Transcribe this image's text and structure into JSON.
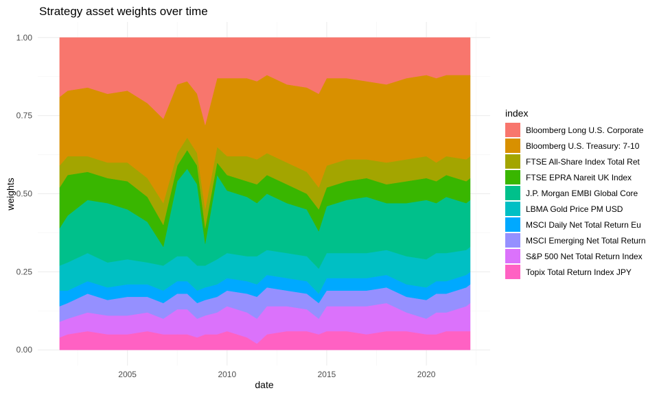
{
  "chart_data": {
    "type": "area",
    "stacked": true,
    "title": "Strategy asset weights over time",
    "xlabel": "date",
    "ylabel": "weights",
    "xlim": [
      2000.5,
      2023.2
    ],
    "ylim": [
      -0.05,
      1.05
    ],
    "x_ticks": [
      2005,
      2010,
      2015,
      2020
    ],
    "x_tick_labels": [
      "2005",
      "2010",
      "2015",
      "2020"
    ],
    "y_ticks": [
      0,
      0.25,
      0.5,
      0.75,
      1.0
    ],
    "y_tick_labels": [
      "0.00",
      "0.25",
      "0.50",
      "0.75",
      "1.00"
    ],
    "grid": true,
    "legend": {
      "title": "index",
      "position": "right"
    },
    "x": [
      2001.6,
      2002.0,
      2003.0,
      2004.0,
      2005.0,
      2006.0,
      2006.8,
      2007.5,
      2008.0,
      2008.5,
      2008.9,
      2009.5,
      2010.0,
      2011.0,
      2011.5,
      2012.0,
      2013.0,
      2014.0,
      2014.6,
      2015.0,
      2016.0,
      2017.0,
      2018.0,
      2019.0,
      2020.0,
      2020.5,
      2021.0,
      2022.0,
      2022.2
    ],
    "series": [
      {
        "name": "Topix Total Return Index JPY",
        "color": "#FF61C3",
        "values": [
          0.04,
          0.05,
          0.06,
          0.05,
          0.05,
          0.06,
          0.05,
          0.05,
          0.05,
          0.04,
          0.05,
          0.05,
          0.06,
          0.04,
          0.02,
          0.05,
          0.06,
          0.06,
          0.05,
          0.06,
          0.06,
          0.05,
          0.06,
          0.06,
          0.05,
          0.05,
          0.06,
          0.06,
          0.06
        ]
      },
      {
        "name": "S&P 500 Net Total Return Index",
        "color": "#DB72FB",
        "values": [
          0.05,
          0.05,
          0.06,
          0.06,
          0.06,
          0.06,
          0.05,
          0.08,
          0.08,
          0.06,
          0.06,
          0.07,
          0.08,
          0.08,
          0.08,
          0.09,
          0.08,
          0.07,
          0.05,
          0.08,
          0.08,
          0.09,
          0.09,
          0.06,
          0.05,
          0.07,
          0.06,
          0.08,
          0.09
        ]
      },
      {
        "name": "MSCI Emerging Net Total Return",
        "color": "#9590FF",
        "values": [
          0.05,
          0.05,
          0.06,
          0.05,
          0.06,
          0.05,
          0.05,
          0.05,
          0.05,
          0.05,
          0.05,
          0.05,
          0.05,
          0.06,
          0.07,
          0.06,
          0.05,
          0.05,
          0.05,
          0.05,
          0.05,
          0.05,
          0.05,
          0.05,
          0.06,
          0.06,
          0.06,
          0.06,
          0.06
        ]
      },
      {
        "name": "MSCI Daily Net Total Return Eu",
        "color": "#00A9FF",
        "values": [
          0.05,
          0.04,
          0.04,
          0.04,
          0.04,
          0.04,
          0.04,
          0.04,
          0.04,
          0.04,
          0.04,
          0.04,
          0.04,
          0.04,
          0.04,
          0.04,
          0.04,
          0.04,
          0.03,
          0.04,
          0.04,
          0.04,
          0.04,
          0.04,
          0.04,
          0.04,
          0.04,
          0.04,
          0.04
        ]
      },
      {
        "name": "LBMA Gold Price PM USD",
        "color": "#00BFC4",
        "values": [
          0.08,
          0.09,
          0.09,
          0.08,
          0.08,
          0.07,
          0.08,
          0.08,
          0.08,
          0.08,
          0.07,
          0.08,
          0.08,
          0.08,
          0.09,
          0.08,
          0.08,
          0.08,
          0.08,
          0.08,
          0.08,
          0.08,
          0.08,
          0.09,
          0.09,
          0.09,
          0.09,
          0.08,
          0.08
        ]
      },
      {
        "name": "J.P. Morgan EMBI Global Core",
        "color": "#00C08B",
        "values": [
          0.12,
          0.15,
          0.17,
          0.19,
          0.16,
          0.13,
          0.06,
          0.24,
          0.28,
          0.26,
          0.07,
          0.27,
          0.2,
          0.19,
          0.17,
          0.18,
          0.16,
          0.15,
          0.12,
          0.15,
          0.17,
          0.18,
          0.15,
          0.17,
          0.19,
          0.16,
          0.18,
          0.15,
          0.15
        ]
      },
      {
        "name": "FTSE EPRA Nareit UK Index",
        "color": "#39B600",
        "values": [
          0.13,
          0.13,
          0.09,
          0.08,
          0.09,
          0.08,
          0.07,
          0.05,
          0.06,
          0.06,
          0.05,
          0.04,
          0.05,
          0.05,
          0.06,
          0.06,
          0.06,
          0.05,
          0.07,
          0.06,
          0.06,
          0.06,
          0.06,
          0.07,
          0.07,
          0.07,
          0.07,
          0.07,
          0.07
        ]
      },
      {
        "name": "FTSE All-Share Index Total Ret",
        "color": "#A3A500",
        "values": [
          0.07,
          0.06,
          0.05,
          0.05,
          0.06,
          0.06,
          0.07,
          0.04,
          0.04,
          0.04,
          0.06,
          0.05,
          0.06,
          0.08,
          0.08,
          0.07,
          0.07,
          0.07,
          0.07,
          0.07,
          0.07,
          0.06,
          0.07,
          0.07,
          0.07,
          0.06,
          0.06,
          0.07,
          0.07
        ]
      },
      {
        "name": "Bloomberg U.S. Treasury: 7-10",
        "color": "#D89000",
        "values": [
          0.22,
          0.21,
          0.22,
          0.22,
          0.23,
          0.24,
          0.27,
          0.22,
          0.18,
          0.19,
          0.27,
          0.22,
          0.25,
          0.25,
          0.25,
          0.25,
          0.25,
          0.27,
          0.3,
          0.28,
          0.26,
          0.25,
          0.25,
          0.26,
          0.26,
          0.27,
          0.26,
          0.27,
          0.26
        ]
      },
      {
        "name": "Bloomberg Long U.S. Corporate",
        "color": "#F8766D",
        "values": [
          0.19,
          0.17,
          0.16,
          0.18,
          0.17,
          0.21,
          0.26,
          0.15,
          0.14,
          0.18,
          0.28,
          0.13,
          0.13,
          0.13,
          0.14,
          0.12,
          0.15,
          0.16,
          0.18,
          0.13,
          0.13,
          0.14,
          0.15,
          0.13,
          0.12,
          0.13,
          0.12,
          0.12,
          0.12
        ]
      }
    ],
    "legend_order": [
      9,
      8,
      7,
      6,
      5,
      4,
      3,
      2,
      1,
      0
    ]
  }
}
